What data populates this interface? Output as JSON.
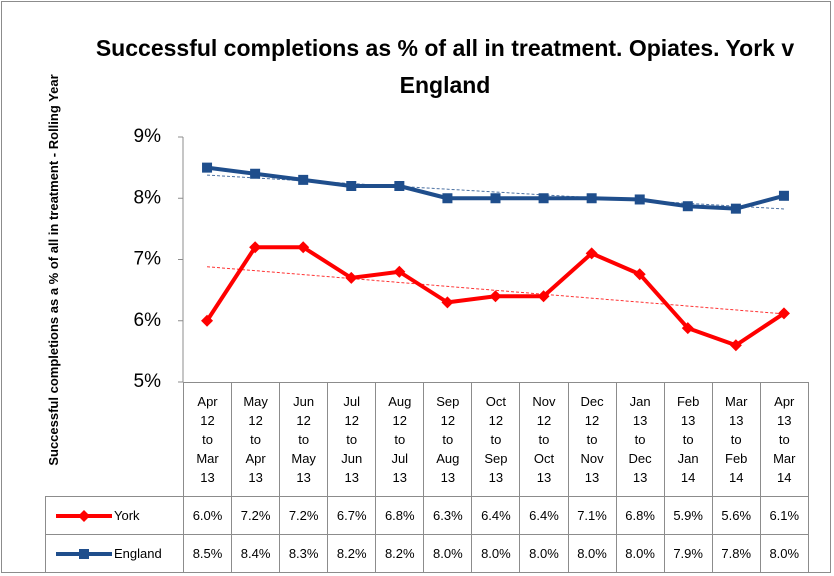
{
  "chart_data": {
    "type": "line",
    "title": "Successful completions as % of all in treatment. Opiates. York v England",
    "y_label": "Successful completions as a % of all in treatment - Rolling Year",
    "categories": [
      "Apr 12 to Mar 13",
      "May 12 to Apr 13",
      "Jun 12 to May 13",
      "Jul 12 to Jun 13",
      "Aug 12 to Jul 13",
      "Sep 12 to Aug 13",
      "Oct 12 to Sep 13",
      "Nov 12 to Oct 13",
      "Dec 12 to Nov 13",
      "Jan 13 to Dec 13",
      "Feb 13 to Jan 14",
      "Mar 13 to Feb 14",
      "Apr 13 to Mar 14"
    ],
    "series": [
      {
        "name": "York",
        "color": "#ff0000",
        "marker": "diamond",
        "trendline": true,
        "values": [
          6.0,
          7.2,
          7.2,
          6.7,
          6.8,
          6.3,
          6.4,
          6.4,
          7.1,
          6.76,
          5.88,
          5.6,
          6.12
        ],
        "value_labels": [
          "6.0%",
          "7.2%",
          "7.2%",
          "6.7%",
          "6.8%",
          "6.3%",
          "6.4%",
          "6.4%",
          "7.1%",
          "6.8%",
          "5.9%",
          "5.6%",
          "6.1%"
        ]
      },
      {
        "name": "England",
        "color": "#1f4e8c",
        "marker": "square",
        "trendline": true,
        "values": [
          8.5,
          8.4,
          8.3,
          8.2,
          8.2,
          8.0,
          8.0,
          8.0,
          8.0,
          7.98,
          7.87,
          7.83,
          8.04
        ],
        "value_labels": [
          "8.5%",
          "8.4%",
          "8.3%",
          "8.2%",
          "8.2%",
          "8.0%",
          "8.0%",
          "8.0%",
          "8.0%",
          "8.0%",
          "7.9%",
          "7.8%",
          "8.0%"
        ]
      }
    ],
    "ylim": [
      5,
      9
    ],
    "yticks": [
      {
        "value": 5,
        "label": "5%"
      },
      {
        "value": 6,
        "label": "6%"
      },
      {
        "value": 7,
        "label": "7%"
      },
      {
        "value": 8,
        "label": "8%"
      },
      {
        "value": 9,
        "label": "9%"
      }
    ],
    "grid": false,
    "data_table": true
  }
}
